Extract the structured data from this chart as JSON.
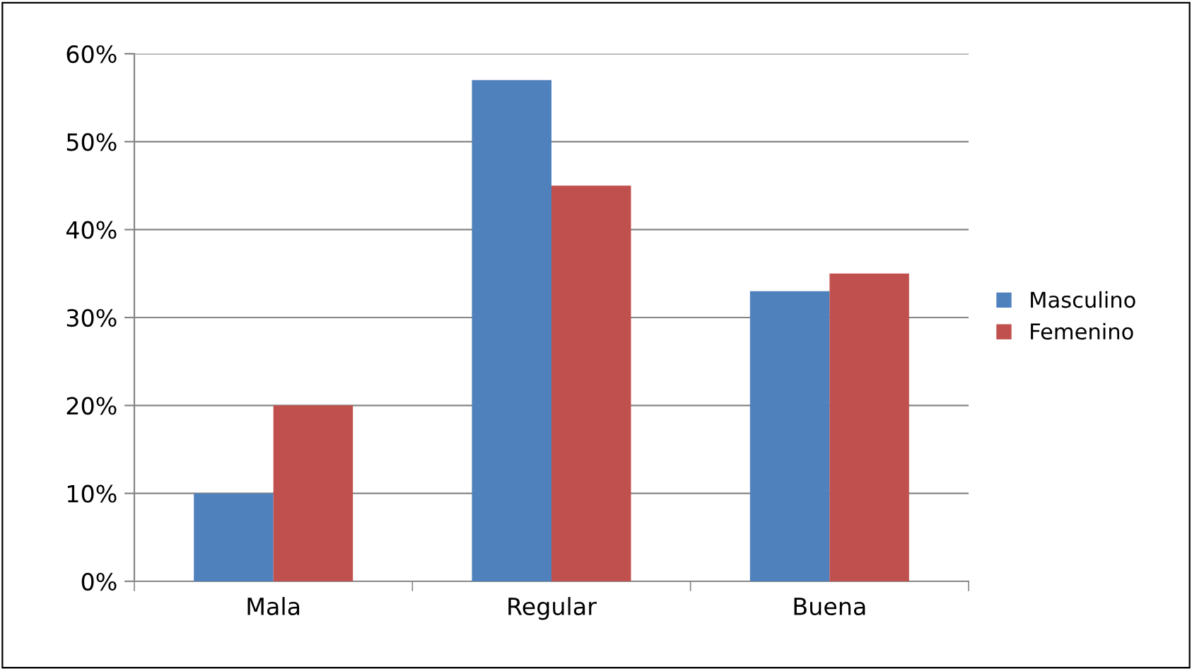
{
  "chart_data": {
    "type": "bar",
    "categories": [
      "Mala",
      "Regular",
      "Buena"
    ],
    "series": [
      {
        "name": "Masculino",
        "color": "#4f81bd",
        "values": [
          10,
          57,
          33
        ]
      },
      {
        "name": "Femenino",
        "color": "#c0504d",
        "values": [
          20,
          45,
          35
        ]
      }
    ],
    "ylim": [
      0,
      60
    ],
    "yticks": [
      {
        "value": 0,
        "label": "0%"
      },
      {
        "value": 10,
        "label": "10%"
      },
      {
        "value": 20,
        "label": "20%"
      },
      {
        "value": 30,
        "label": "30%"
      },
      {
        "value": 40,
        "label": "40%"
      },
      {
        "value": 50,
        "label": "50%"
      },
      {
        "value": 60,
        "label": "60%"
      }
    ],
    "grid": "y",
    "legend": "right"
  }
}
